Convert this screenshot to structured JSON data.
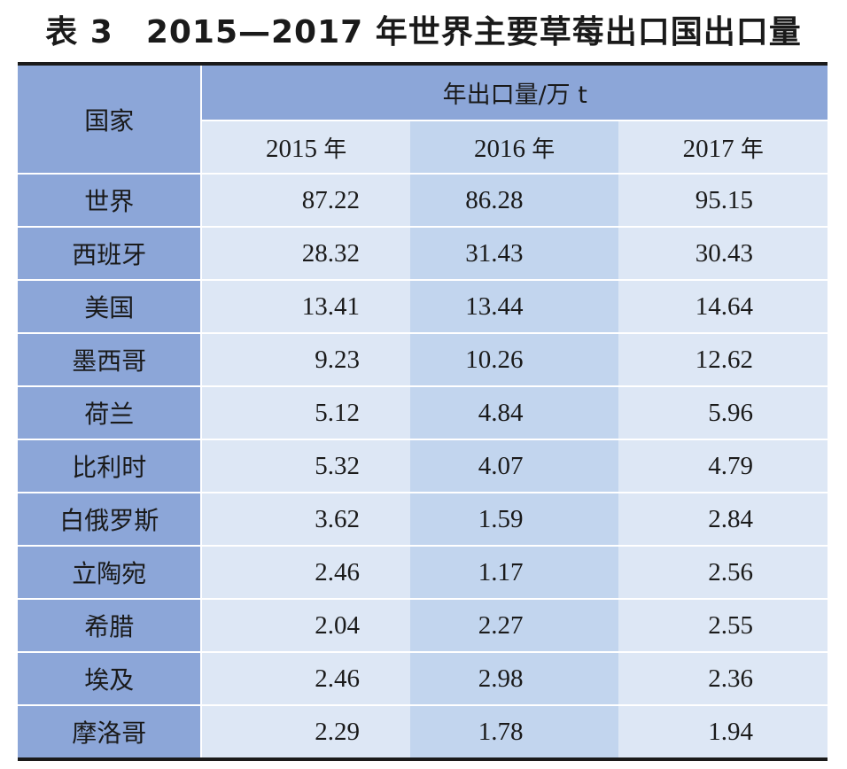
{
  "title": "表 3　2015—2017 年世界主要草莓出口国出口量",
  "table": {
    "country_header": "国家",
    "group_header": "年出口量/万 t",
    "years": [
      {
        "num": "2015",
        "suffix": "年"
      },
      {
        "num": "2016",
        "suffix": "年"
      },
      {
        "num": "2017",
        "suffix": "年"
      }
    ],
    "rows": [
      {
        "country": "世界",
        "values": [
          "87.22",
          "86.28",
          "95.15"
        ]
      },
      {
        "country": "西班牙",
        "values": [
          "28.32",
          "31.43",
          "30.43"
        ]
      },
      {
        "country": "美国",
        "values": [
          "13.41",
          "13.44",
          "14.64"
        ]
      },
      {
        "country": "墨西哥",
        "values": [
          "9.23",
          "10.26",
          "12.62"
        ]
      },
      {
        "country": "荷兰",
        "values": [
          "5.12",
          "4.84",
          "5.96"
        ]
      },
      {
        "country": "比利时",
        "values": [
          "5.32",
          "4.07",
          "4.79"
        ]
      },
      {
        "country": "白俄罗斯",
        "values": [
          "3.62",
          "1.59",
          "2.84"
        ]
      },
      {
        "country": "立陶宛",
        "values": [
          "2.46",
          "1.17",
          "2.56"
        ]
      },
      {
        "country": "希腊",
        "values": [
          "2.04",
          "2.27",
          "2.55"
        ]
      },
      {
        "country": "埃及",
        "values": [
          "2.46",
          "2.98",
          "2.36"
        ]
      },
      {
        "country": "摩洛哥",
        "values": [
          "2.29",
          "1.78",
          "1.94"
        ]
      }
    ]
  },
  "colors": {
    "header_blue": "#8ca6d8",
    "column_light": "#dde7f5",
    "column_mid": "#c2d5ee"
  }
}
